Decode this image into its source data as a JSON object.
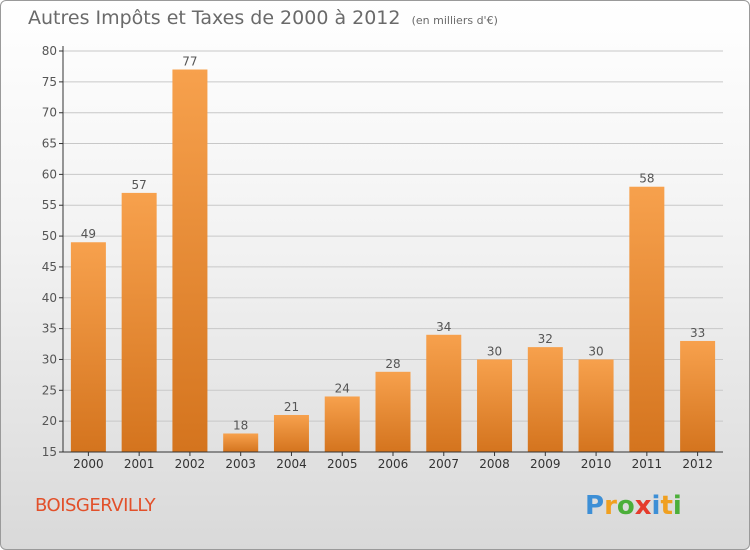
{
  "title": "Autres Impôts et Taxes de 2000 à 2012",
  "unit_note": "(en milliers d'€)",
  "commune": "BOISGERVILLY",
  "logo": {
    "text": "Proxiti",
    "letter_colors": [
      "#3d8fd6",
      "#f0a020",
      "#4caf3a",
      "#e53b2c",
      "#3d8fd6",
      "#f0a020",
      "#4caf3a"
    ]
  },
  "colors": {
    "bar_top": "#f7a14d",
    "bar_bottom": "#d4741e",
    "grid": "#c8c8c8",
    "axis": "#333333",
    "text": "#555555",
    "commune": "#e2502a"
  },
  "chart_data": {
    "type": "bar",
    "categories": [
      "2000",
      "2001",
      "2002",
      "2003",
      "2004",
      "2005",
      "2006",
      "2007",
      "2008",
      "2009",
      "2010",
      "2011",
      "2012"
    ],
    "values": [
      49,
      57,
      77,
      18,
      21,
      24,
      28,
      34,
      30,
      32,
      30,
      58,
      33
    ],
    "ylim": [
      15,
      80
    ],
    "yticks": [
      15,
      20,
      25,
      30,
      35,
      40,
      45,
      50,
      55,
      60,
      65,
      70,
      75,
      80
    ],
    "grid": true,
    "data_labels": true
  }
}
